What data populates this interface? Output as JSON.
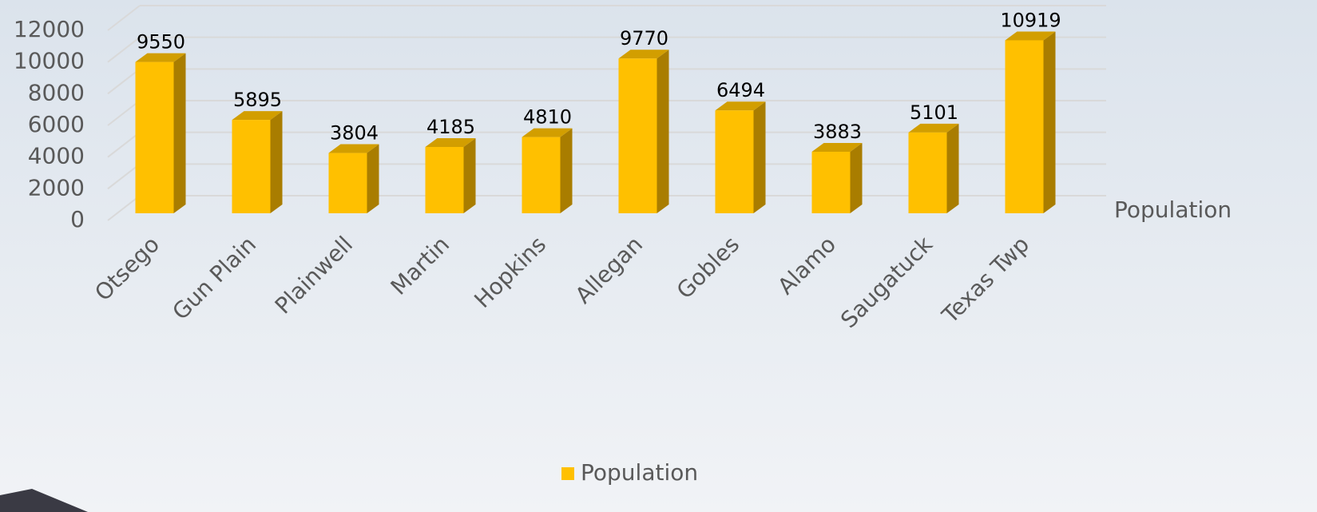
{
  "chart_data": {
    "type": "bar3d",
    "categories": [
      "Otsego",
      "Gun Plain",
      "Plainwell",
      "Martin",
      "Hopkins",
      "Allegan",
      "Gobles",
      "Alamo",
      "Saugatuck",
      "Texas Twp"
    ],
    "series": [
      {
        "name": "Population",
        "color": "#ffc000",
        "values": [
          9550,
          5895,
          3804,
          4185,
          4810,
          9770,
          6494,
          3883,
          5101,
          10919
        ]
      }
    ],
    "ylim": [
      0,
      12000
    ],
    "yticks": [
      0,
      2000,
      4000,
      6000,
      8000,
      10000,
      12000
    ],
    "grid": true,
    "legend": "bottom"
  }
}
